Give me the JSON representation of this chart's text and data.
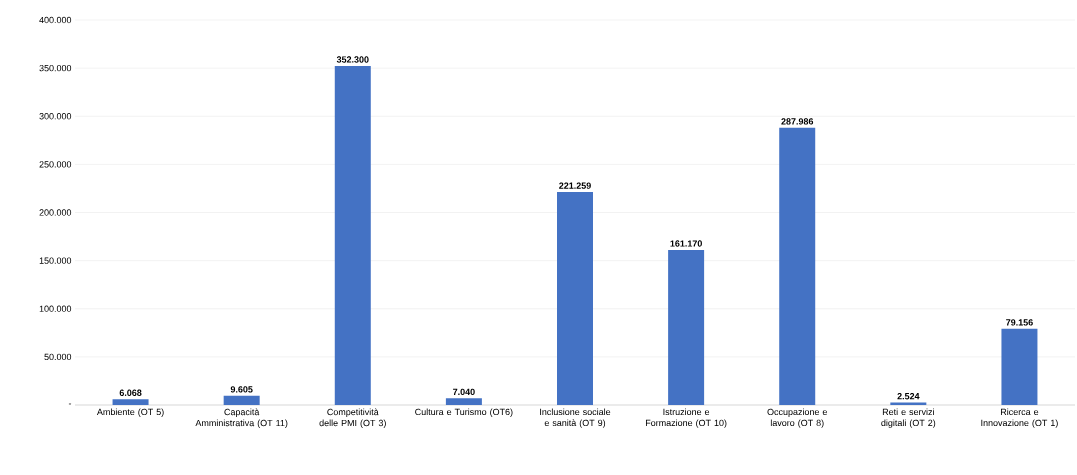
{
  "chart_data": {
    "type": "bar",
    "color": "#4472c4",
    "grid": "y",
    "categories": [
      "Ambiente (OT 5)",
      "Capacità Amministrativa (OT 11)",
      "Competitività delle PMI  (OT 3)",
      "Cultura e Turismo (OT6)",
      "Inclusione sociale e sanità (OT 9)",
      "Istruzione e Formazione (OT 10)",
      "Occupazione e lavoro (OT 8)",
      "Reti e servizi digitali (OT 2)",
      "Ricerca e Innovazione (OT 1)"
    ],
    "values": [
      6068,
      9605,
      352300,
      7040,
      221259,
      161170,
      287986,
      2524,
      79156
    ],
    "value_labels": [
      "6.068",
      "9.605",
      "352.300",
      "7.040",
      "221.259",
      "161.170",
      "287.986",
      "2.524",
      "79.156"
    ],
    "ylim": [
      0,
      400000
    ],
    "yticks": [
      {
        "value": 0,
        "label": "-"
      },
      {
        "value": 50000,
        "label": "50.000"
      },
      {
        "value": 100000,
        "label": "100.000"
      },
      {
        "value": 150000,
        "label": "150.000"
      },
      {
        "value": 200000,
        "label": "200.000"
      },
      {
        "value": 250000,
        "label": "250.000"
      },
      {
        "value": 300000,
        "label": "300.000"
      },
      {
        "value": 350000,
        "label": "350.000"
      },
      {
        "value": 400000,
        "label": "400.000"
      }
    ]
  }
}
